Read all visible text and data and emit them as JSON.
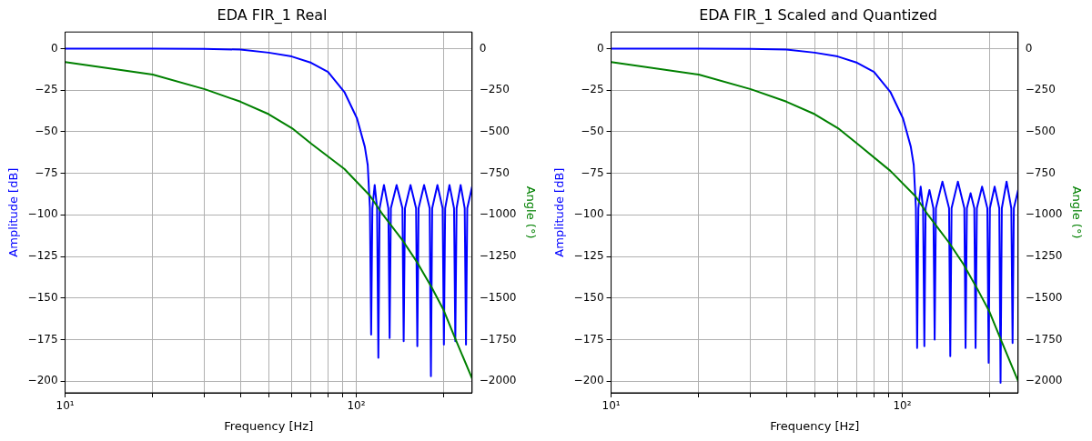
{
  "chart_data": [
    {
      "type": "line",
      "title": "EDA FIR_1 Real",
      "xlabel": "Frequency [Hz]",
      "ylabel": "Amplitude [dB]",
      "y2label": "Angle (°)",
      "log": "x",
      "grid": true,
      "legend": false,
      "marker": "none",
      "line_style": "solid",
      "xlim": [
        10,
        250
      ],
      "xticks": [
        {
          "value": 10,
          "label": "10¹"
        },
        {
          "value": 20,
          "label": null
        },
        {
          "value": 30,
          "label": null
        },
        {
          "value": 40,
          "label": null
        },
        {
          "value": 50,
          "label": null
        },
        {
          "value": 60,
          "label": null
        },
        {
          "value": 70,
          "label": null
        },
        {
          "value": 80,
          "label": null
        },
        {
          "value": 90,
          "label": null
        },
        {
          "value": 100,
          "label": "10²"
        },
        {
          "value": 200,
          "label": null
        }
      ],
      "ylim": [
        -207,
        10
      ],
      "yticks": [
        {
          "value": 0,
          "label": "0"
        },
        {
          "value": -25,
          "label": "−25"
        },
        {
          "value": -50,
          "label": "−50"
        },
        {
          "value": -75,
          "label": "−75"
        },
        {
          "value": -100,
          "label": "−100"
        },
        {
          "value": -125,
          "label": "−125"
        },
        {
          "value": -150,
          "label": "−150"
        },
        {
          "value": -175,
          "label": "−175"
        },
        {
          "value": -200,
          "label": "−200"
        }
      ],
      "y2lim": [
        -2070,
        100
      ],
      "y2ticks": [
        {
          "value": 0,
          "label": "0"
        },
        {
          "value": -250,
          "label": "−250"
        },
        {
          "value": -500,
          "label": "−500"
        },
        {
          "value": -750,
          "label": "−750"
        },
        {
          "value": -1000,
          "label": "−1000"
        },
        {
          "value": -1250,
          "label": "−1250"
        },
        {
          "value": -1500,
          "label": "−1500"
        },
        {
          "value": -1750,
          "label": "−1750"
        },
        {
          "value": -2000,
          "label": "−2000"
        }
      ],
      "series": [
        {
          "color": "#0000ff",
          "x": [
            10,
            20,
            30,
            40,
            50,
            60,
            70,
            80,
            91,
            100.6,
            107,
            109.5,
            111.4,
            112.5,
            113.6,
            115.7,
            117.9,
            119.1,
            120.3,
            124.5,
            128.9,
            130.2,
            131.5,
            137.6,
            144.1,
            145.5,
            147,
            153.6,
            160.5,
            162.1,
            163.7,
            171,
            178.7,
            180.5,
            182.3,
            190,
            198,
            200,
            202,
            209,
            216.7,
            218.9,
            221.1,
            228.3,
            235.8,
            238.2,
            240.6,
            250
          ],
          "values": [
            0,
            0,
            -0.1,
            -0.6,
            -2.4,
            -4.7,
            -8.5,
            -14,
            -26,
            -42,
            -59,
            -70,
            -96,
            -172,
            -96,
            -82,
            -96,
            -186,
            -96,
            -82,
            -96,
            -174,
            -96,
            -82,
            -96,
            -176,
            -96,
            -82,
            -96,
            -179,
            -96,
            -82,
            -96,
            -197,
            -96,
            -82,
            -96,
            -178,
            -96,
            -82,
            -96,
            -176,
            -96,
            -82,
            -96,
            -178,
            -96,
            -83
          ]
        },
        {
          "color": "#008000",
          "axis": "y2",
          "x": [
            10,
            20,
            30.2,
            40,
            50,
            60.2,
            70.2,
            91,
            111.3,
            122,
            144.5,
            162,
            181.7,
            199,
            218,
            250
          ],
          "values": [
            -81,
            -156,
            -244,
            -319,
            -394,
            -479,
            -573,
            -723,
            -883,
            -986,
            -1155,
            -1286,
            -1437,
            -1568,
            -1737,
            -1985
          ]
        }
      ]
    },
    {
      "type": "line",
      "title": "EDA FIR_1 Scaled and Quantized",
      "xlabel": "Frequency [Hz]",
      "ylabel": "Amplitude [dB]",
      "y2label": "Angle (°)",
      "log": "x",
      "grid": true,
      "legend": false,
      "marker": "none",
      "line_style": "solid",
      "xlim": [
        10,
        250
      ],
      "xticks": [
        {
          "value": 10,
          "label": "10¹"
        },
        {
          "value": 20,
          "label": null
        },
        {
          "value": 30,
          "label": null
        },
        {
          "value": 40,
          "label": null
        },
        {
          "value": 50,
          "label": null
        },
        {
          "value": 60,
          "label": null
        },
        {
          "value": 70,
          "label": null
        },
        {
          "value": 80,
          "label": null
        },
        {
          "value": 90,
          "label": null
        },
        {
          "value": 100,
          "label": "10²"
        },
        {
          "value": 200,
          "label": null
        }
      ],
      "ylim": [
        -207,
        10
      ],
      "yticks": [
        {
          "value": 0,
          "label": "0"
        },
        {
          "value": -25,
          "label": "−25"
        },
        {
          "value": -50,
          "label": "−50"
        },
        {
          "value": -75,
          "label": "−75"
        },
        {
          "value": -100,
          "label": "−100"
        },
        {
          "value": -125,
          "label": "−125"
        },
        {
          "value": -150,
          "label": "−150"
        },
        {
          "value": -175,
          "label": "−175"
        },
        {
          "value": -200,
          "label": "−200"
        }
      ],
      "y2lim": [
        -2070,
        100
      ],
      "y2ticks": [
        {
          "value": 0,
          "label": "0"
        },
        {
          "value": -250,
          "label": "−250"
        },
        {
          "value": -500,
          "label": "−500"
        },
        {
          "value": -750,
          "label": "−750"
        },
        {
          "value": -1000,
          "label": "−1000"
        },
        {
          "value": -1250,
          "label": "−1250"
        },
        {
          "value": -1500,
          "label": "−1500"
        },
        {
          "value": -1750,
          "label": "−1750"
        },
        {
          "value": -2000,
          "label": "−2000"
        }
      ],
      "series": [
        {
          "color": "#0000ff",
          "x": [
            10,
            20,
            30,
            40,
            50,
            60,
            70,
            80,
            91,
            100.6,
            107,
            109.5,
            111.4,
            112.5,
            113.6,
            115.7,
            117.9,
            119.1,
            120.3,
            124,
            127.9,
            129.2,
            130.5,
            137.4,
            144.8,
            146.2,
            147.7,
            155.3,
            163.4,
            165,
            166.7,
            171.7,
            176.8,
            178.6,
            180.4,
            188,
            196,
            198,
            200,
            207.6,
            215.4,
            217.6,
            219.8,
            228.2,
            236.9,
            239.3,
            241.7,
            250
          ],
          "values": [
            0,
            0,
            -0.1,
            -0.6,
            -2.4,
            -4.7,
            -8.5,
            -14,
            -26,
            -42,
            -59,
            -70,
            -96,
            -180,
            -96,
            -83,
            -96,
            -179,
            -96,
            -85,
            -96,
            -175,
            -96,
            -80,
            -96,
            -185,
            -96,
            -80,
            -96,
            -180,
            -96,
            -87,
            -96,
            -180,
            -96,
            -83,
            -96,
            -189,
            -96,
            -83,
            -96,
            -201,
            -96,
            -80,
            -96,
            -177,
            -96,
            -85
          ]
        },
        {
          "color": "#008000",
          "axis": "y2",
          "x": [
            10,
            20,
            30.2,
            40,
            50,
            60.2,
            70.2,
            91,
            111.3,
            122,
            144.5,
            162,
            181.7,
            199,
            218,
            250
          ],
          "values": [
            -81,
            -156,
            -244,
            -319,
            -394,
            -479,
            -573,
            -735,
            -890,
            -995,
            -1165,
            -1295,
            -1450,
            -1580,
            -1750,
            -2000
          ]
        }
      ]
    }
  ]
}
